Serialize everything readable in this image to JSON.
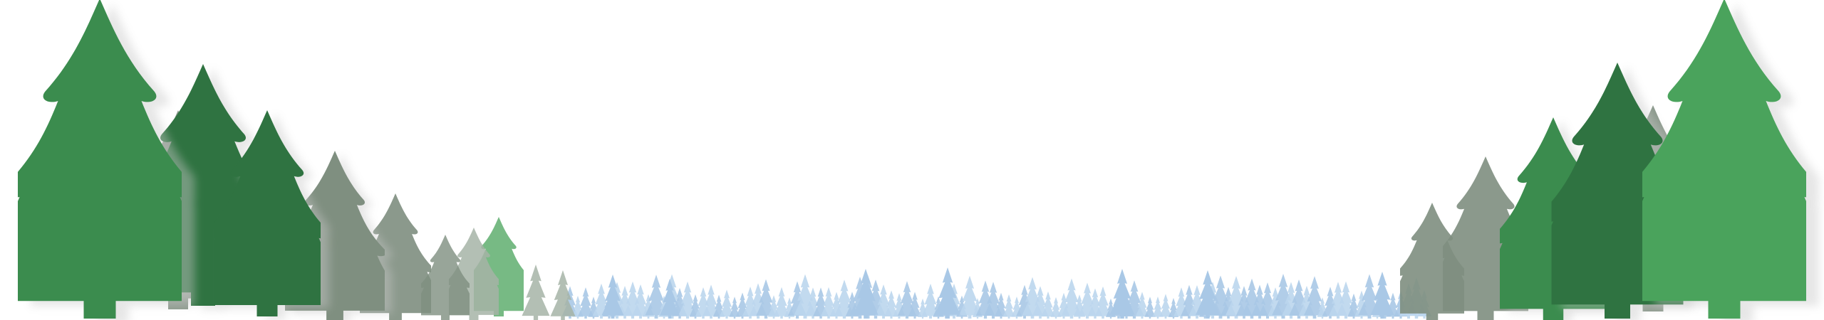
{
  "scene": {
    "background": "#ffffff",
    "colors": {
      "green_dark": "#2f7341",
      "green_mid": "#3b8c4e",
      "green_light": "#4aa35c",
      "grey_green": "#7f8f80",
      "grey_light": "#a6b4a7",
      "blue_far": "#a9c8e6",
      "blue_far_2": "#bcd6ee",
      "shadow": "#c9c9c9"
    },
    "icons": {
      "tree": "pine-tree-icon"
    }
  }
}
